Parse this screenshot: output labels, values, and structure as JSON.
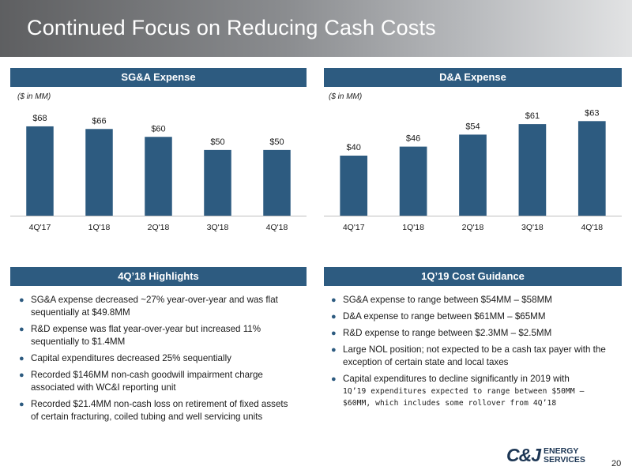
{
  "title": "Continued Focus on Reducing Cash Costs",
  "sga": {
    "header": "SG&A Expense",
    "unit": "($ in MM)"
  },
  "da": {
    "header": "D&A Expense",
    "unit": "($ in MM)"
  },
  "chart_data": [
    {
      "type": "bar",
      "title": "SG&A Expense",
      "ylabel": "($ in MM)",
      "categories": [
        "4Q'17",
        "1Q'18",
        "2Q'18",
        "3Q'18",
        "4Q'18"
      ],
      "values": [
        68,
        66,
        60,
        50,
        50
      ],
      "labels": [
        "$68",
        "$66",
        "$60",
        "$50",
        "$50"
      ],
      "ylim": [
        0,
        80
      ],
      "color": "#2d5b80",
      "grid": false
    },
    {
      "type": "bar",
      "title": "D&A Expense",
      "ylabel": "($ in MM)",
      "categories": [
        "4Q'17",
        "1Q'18",
        "2Q'18",
        "3Q'18",
        "4Q'18"
      ],
      "values": [
        40,
        46,
        54,
        61,
        63
      ],
      "labels": [
        "$40",
        "$46",
        "$54",
        "$61",
        "$63"
      ],
      "ylim": [
        0,
        70
      ],
      "color": "#2d5b80",
      "grid": false
    }
  ],
  "highlights": {
    "header": "4Q’18 Highlights",
    "items": [
      "SG&A expense decreased ~27% year-over-year and was flat sequentially at $49.8MM",
      "R&D expense was flat year-over-year but increased 11% sequentially to $1.4MM",
      "Capital expenditures decreased 25% sequentially",
      "Recorded $146MM non-cash goodwill impairment charge associated with WC&I reporting unit",
      "Recorded $21.4MM non-cash loss on retirement of fixed assets of certain fracturing, coiled tubing and well servicing units"
    ]
  },
  "guidance": {
    "header": "1Q’19 Cost Guidance",
    "items": [
      "SG&A expense to range between $54MM – $58MM",
      "D&A expense to range between $61MM – $65MM",
      "R&D expense to range between $2.3MM – $2.5MM",
      "Large NOL position; not expected to be a cash tax payer with the exception of certain state and local taxes",
      "Capital expenditures to decline significantly in 2019 with"
    ],
    "last_item_sub": "1Q’19 expenditures expected to range between $50MM – $60MM, which includes some rollover from 4Q’18"
  },
  "logo": {
    "mark": "C&J",
    "line1": "ENERGY",
    "line2": "SERVICES"
  },
  "page_number": "20",
  "colors": {
    "accent": "#2d5b80",
    "logo": "#1c3654"
  }
}
